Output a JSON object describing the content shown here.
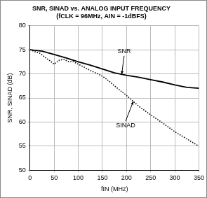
{
  "chart_data": {
    "type": "line",
    "title": [
      "SNR, SINAD vs. ANALOG INPUT FREQUENCY",
      "(fCLK = 96MHz, AIN = -1dBFS)"
    ],
    "x_label": "fIN (MHz)",
    "y_label": "SNR, SINAD (dB)",
    "xlim": [
      0,
      350
    ],
    "xticks": [
      0,
      50,
      100,
      150,
      200,
      250,
      300,
      350
    ],
    "ylim": [
      50,
      80
    ],
    "yticks": [
      50,
      55,
      60,
      65,
      70,
      75,
      80
    ],
    "grid": true,
    "series": [
      {
        "name": "SNR",
        "color": "#000000",
        "line_style": "solid",
        "x": [
          0,
          25,
          50,
          75,
          100,
          125,
          150,
          175,
          200,
          225,
          250,
          275,
          300,
          325,
          350
        ],
        "values": [
          75,
          74.7,
          74,
          73.3,
          72.5,
          71.8,
          71,
          70.2,
          69.7,
          69.3,
          68.8,
          68.3,
          67.7,
          67.2,
          67
        ]
      },
      {
        "name": "SINAD",
        "color": "#000000",
        "line_style": "dotted",
        "x": [
          0,
          10,
          20,
          30,
          40,
          50,
          60,
          70,
          80,
          90,
          100,
          110,
          125,
          140,
          150,
          160,
          175,
          200,
          225,
          250,
          275,
          300,
          325,
          350
        ],
        "values": [
          75,
          74.6,
          74.3,
          73.5,
          72.8,
          72,
          72.8,
          73,
          72.5,
          72.5,
          72,
          71.5,
          70.7,
          70,
          69.5,
          68.8,
          67.5,
          65.5,
          63.3,
          61.5,
          59.8,
          58,
          56.5,
          55
        ]
      }
    ],
    "annotations": [
      {
        "text": "SNR",
        "text_x": 195,
        "text_y": 74.6,
        "x": 190,
        "y": 69.9
      },
      {
        "text": "SINAD",
        "text_x": 198,
        "text_y": 59.3,
        "x": 214,
        "y": 64.3
      }
    ]
  }
}
